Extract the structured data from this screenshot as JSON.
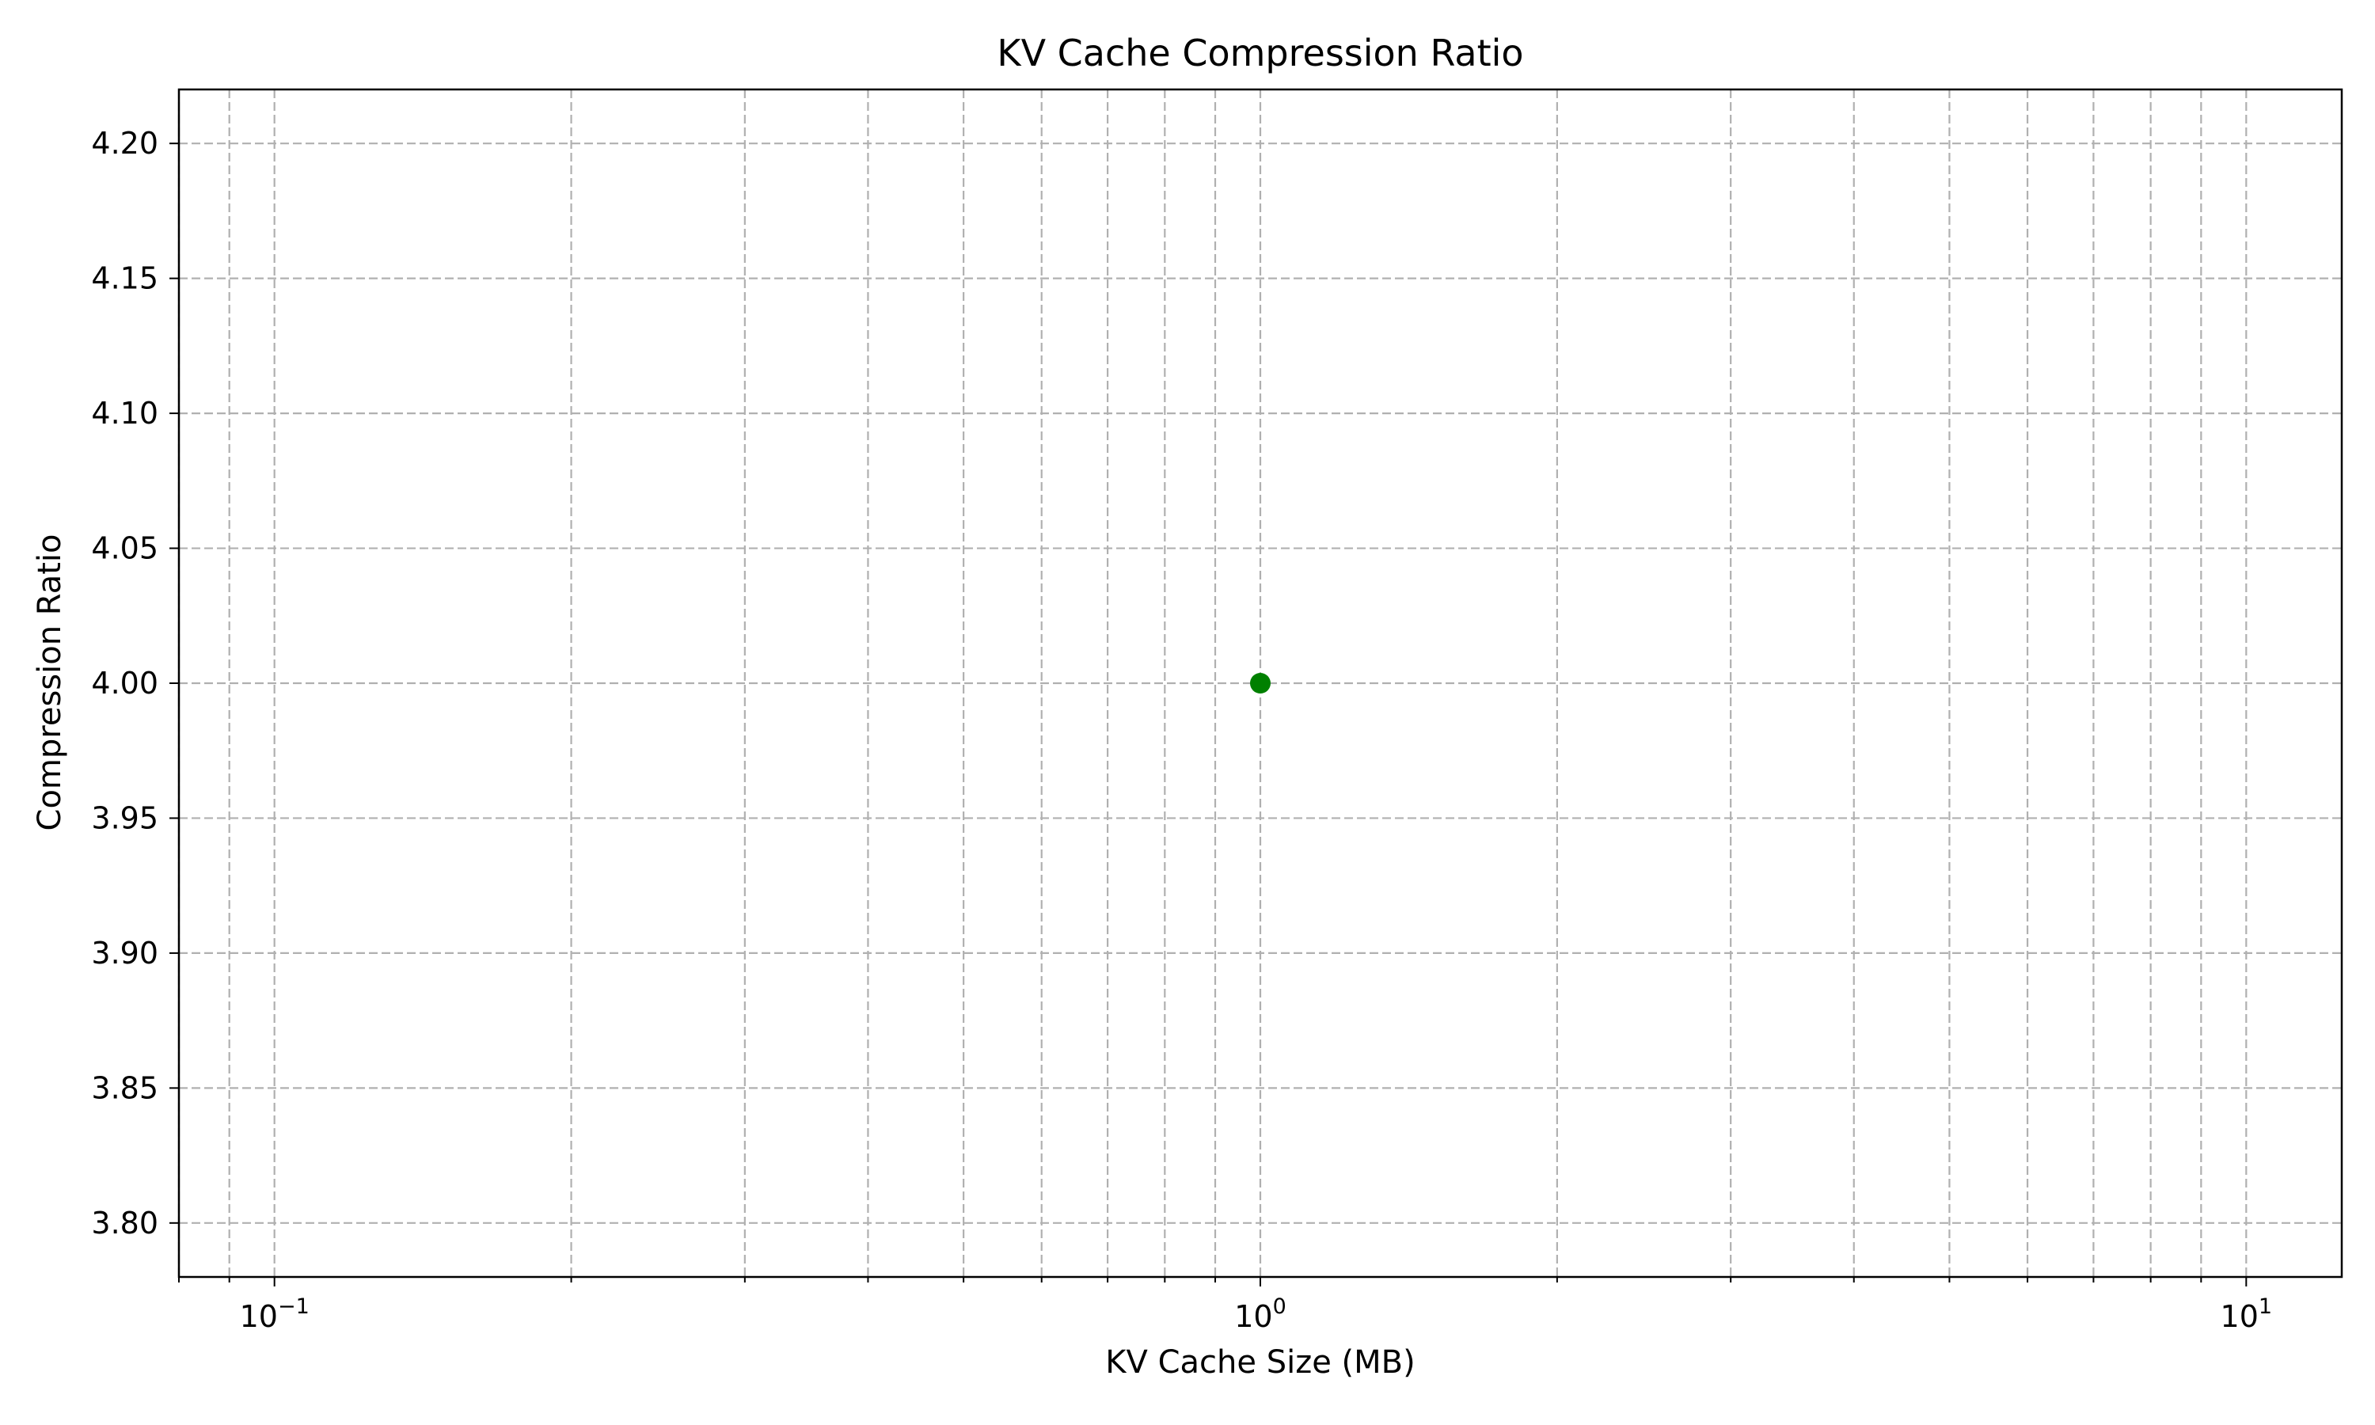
{
  "chart_data": {
    "type": "scatter",
    "title": "KV Cache Compression Ratio",
    "xlabel": "KV Cache Size (MB)",
    "ylabel": "Compression Ratio",
    "xscale": "log",
    "xlim": [
      0.08,
      12.5
    ],
    "ylim": [
      3.78,
      4.22
    ],
    "xticks": [
      {
        "value": 0.1,
        "base": "10",
        "exponent": "−1"
      },
      {
        "value": 1,
        "base": "10",
        "exponent": "0"
      },
      {
        "value": 10,
        "base": "10",
        "exponent": "1"
      }
    ],
    "yticks": [
      3.8,
      3.85,
      3.9,
      3.95,
      4.0,
      4.05,
      4.1,
      4.15,
      4.2
    ],
    "ytick_labels": [
      "3.80",
      "3.85",
      "3.90",
      "3.95",
      "4.00",
      "4.05",
      "4.10",
      "4.15",
      "4.20"
    ],
    "grid": true,
    "grid_style": "dashed",
    "legend": false,
    "points": [
      {
        "x": 1.0,
        "y": 4.0
      }
    ],
    "marker_color": "#008000",
    "grid_color": "#b0b0b0"
  }
}
